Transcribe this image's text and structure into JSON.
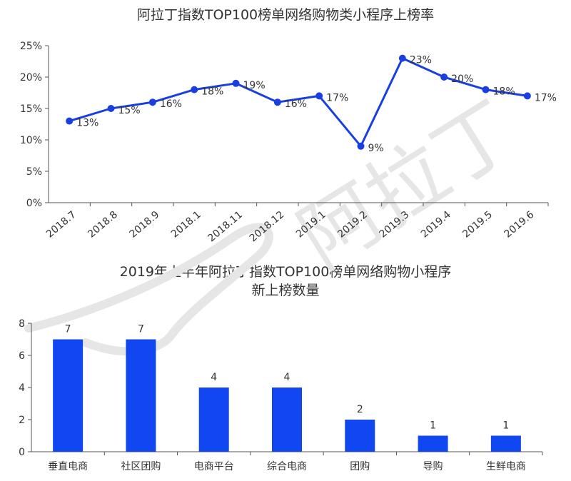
{
  "chart_data": [
    {
      "type": "line",
      "title": "阿拉丁指数TOP100榜单网络购物类小程序上榜率",
      "categories": [
        "2018.7",
        "2018.8",
        "2018.9",
        "2018.1",
        "2018.11",
        "2018.12",
        "2019.1",
        "2019.2",
        "2019.3",
        "2019.4",
        "2019.5",
        "2019.6"
      ],
      "values": [
        13,
        15,
        16,
        18,
        19,
        16,
        17,
        9,
        23,
        20,
        18,
        17
      ],
      "data_labels": [
        "13%",
        "15%",
        "16%",
        "18%",
        "19%",
        "16%",
        "17%",
        "9%",
        "23%",
        "20%",
        "18%",
        "17%"
      ],
      "yticks": [
        "0%",
        "5%",
        "10%",
        "15%",
        "20%",
        "25%"
      ],
      "ylim": [
        0,
        25
      ],
      "color": "#1a3fe0"
    },
    {
      "type": "bar",
      "title_line1": "2019年上半年阿拉丁指数TOP100榜单网络购物小程序",
      "title_line2": "新上榜数量",
      "categories": [
        "垂直电商",
        "社区团购",
        "电商平台",
        "综合电商",
        "团购",
        "导购",
        "生鲜电商"
      ],
      "values": [
        7,
        7,
        4,
        4,
        2,
        1,
        1
      ],
      "data_labels": [
        "7",
        "7",
        "4",
        "4",
        "2",
        "1",
        "1"
      ],
      "yticks": [
        "0",
        "2",
        "4",
        "6",
        "8"
      ],
      "ylim": [
        0,
        8
      ],
      "color": "#1147f0"
    }
  ],
  "watermark": {
    "text": "阿拉丁",
    "color": "#e0e0e0"
  }
}
